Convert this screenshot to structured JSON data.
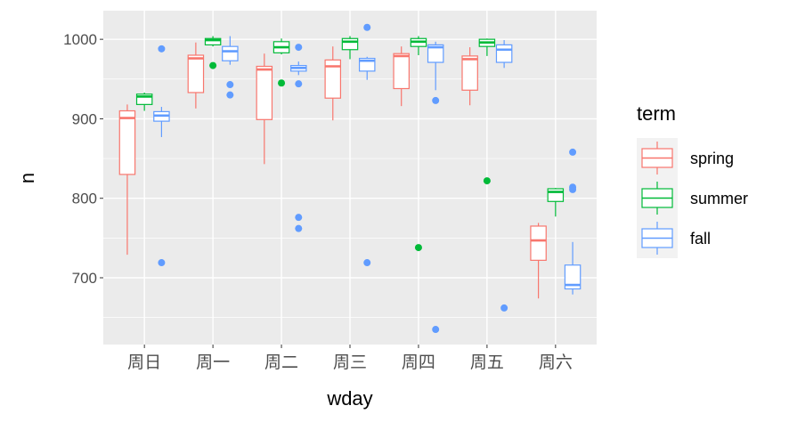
{
  "chart_data": {
    "type": "boxplot",
    "xlabel": "wday",
    "ylabel": "n",
    "categories": [
      "周日",
      "周一",
      "周二",
      "周三",
      "周四",
      "周五",
      "周六"
    ],
    "ylim": [
      616,
      1036
    ],
    "yticks": [
      700,
      800,
      900,
      1000
    ],
    "yminor": [
      650,
      750,
      850,
      950
    ],
    "grid": true,
    "legend": {
      "title": "term",
      "position": "right"
    },
    "series": [
      {
        "name": "spring",
        "color": "#F8766D",
        "boxes": [
          {
            "low": 729,
            "q1": 830,
            "median": 901,
            "q3": 910,
            "high": 918,
            "outliers": []
          },
          {
            "low": 913,
            "q1": 933,
            "median": 976,
            "q3": 980,
            "high": 996,
            "outliers": []
          },
          {
            "low": 843,
            "q1": 899,
            "median": 962,
            "q3": 966,
            "high": 982,
            "outliers": []
          },
          {
            "low": 898,
            "q1": 926,
            "median": 966,
            "q3": 974,
            "high": 991,
            "outliers": []
          },
          {
            "low": 916,
            "q1": 938,
            "median": 979,
            "q3": 982,
            "high": 991,
            "outliers": []
          },
          {
            "low": 917,
            "q1": 936,
            "median": 975,
            "q3": 979,
            "high": 990,
            "outliers": []
          },
          {
            "low": 674,
            "q1": 722,
            "median": 747,
            "q3": 765,
            "high": 769,
            "outliers": []
          }
        ]
      },
      {
        "name": "summer",
        "color": "#00BA38",
        "boxes": [
          {
            "low": 910,
            "q1": 918,
            "median": 928,
            "q3": 931,
            "high": 933,
            "outliers": []
          },
          {
            "low": 991,
            "q1": 993,
            "median": 999,
            "q3": 1001,
            "high": 1004,
            "outliers": [
              967
            ]
          },
          {
            "low": 981,
            "q1": 983,
            "median": 990,
            "q3": 997,
            "high": 1001,
            "outliers": [
              945
            ]
          },
          {
            "low": 975,
            "q1": 987,
            "median": 997,
            "q3": 1001,
            "high": 1004,
            "outliers": []
          },
          {
            "low": 980,
            "q1": 991,
            "median": 997,
            "q3": 1001,
            "high": 1004,
            "outliers": [
              738
            ]
          },
          {
            "low": 979,
            "q1": 991,
            "median": 996,
            "q3": 1000,
            "high": 1001,
            "outliers": [
              822
            ]
          },
          {
            "low": 777,
            "q1": 796,
            "median": 808,
            "q3": 812,
            "high": 813,
            "outliers": []
          }
        ]
      },
      {
        "name": "fall",
        "color": "#619CFF",
        "boxes": [
          {
            "low": 877,
            "q1": 897,
            "median": 904,
            "q3": 909,
            "high": 915,
            "outliers": [
              988,
              719
            ]
          },
          {
            "low": 968,
            "q1": 973,
            "median": 985,
            "q3": 991,
            "high": 1004,
            "outliers": [
              943,
              930
            ]
          },
          {
            "low": 955,
            "q1": 960,
            "median": 964,
            "q3": 967,
            "high": 972,
            "outliers": [
              990,
              944,
              776,
              762
            ]
          },
          {
            "low": 949,
            "q1": 960,
            "median": 973,
            "q3": 976,
            "high": 978,
            "outliers": [
              1015,
              719
            ]
          },
          {
            "low": 936,
            "q1": 971,
            "median": 990,
            "q3": 993,
            "high": 997,
            "outliers": [
              923,
              635
            ]
          },
          {
            "low": 964,
            "q1": 971,
            "median": 987,
            "q3": 993,
            "high": 999,
            "outliers": [
              662
            ]
          },
          {
            "low": 679,
            "q1": 686,
            "median": 691,
            "q3": 716,
            "high": 745,
            "outliers": [
              858,
              814,
              811
            ]
          }
        ]
      }
    ]
  }
}
